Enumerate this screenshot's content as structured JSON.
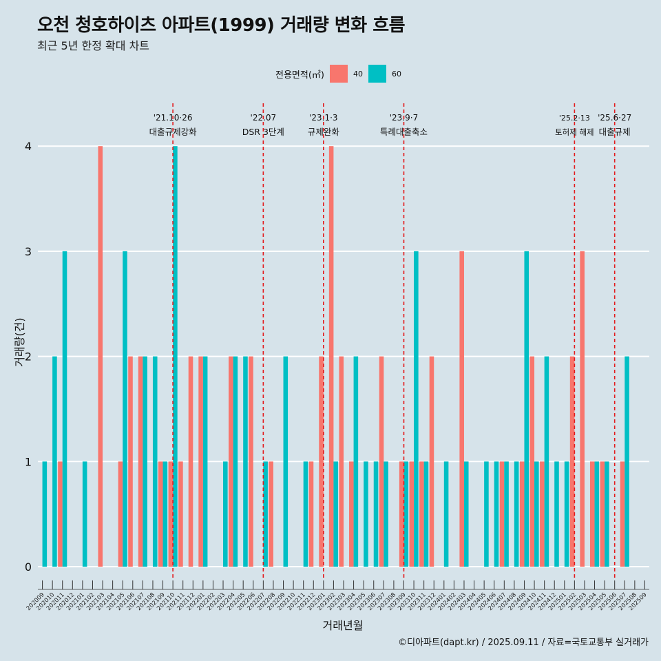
{
  "title": "오천 청호하이츠 아파트(1999) 거래량 변화 흐름",
  "subtitle": "최근 5년 한정 확대 차트",
  "caption": "©디아파트(dapt.kr) / 2025.09.11 / 자료=국토교통부 실거래가",
  "legend": {
    "title": "전용면적(㎡)",
    "items": [
      {
        "label": "40",
        "color": "#f8766d"
      },
      {
        "label": "60",
        "color": "#00bfc4"
      }
    ]
  },
  "chart_data": {
    "type": "bar",
    "xlabel": "거래년월",
    "ylabel": "거래량(건)",
    "ylim": [
      0,
      4
    ],
    "yticks": [
      0,
      1,
      2,
      3,
      4
    ],
    "categories": [
      "202009",
      "202010",
      "202011",
      "202012",
      "202101",
      "202102",
      "202103",
      "202104",
      "202105",
      "202106",
      "202107",
      "202108",
      "202109",
      "202110",
      "202111",
      "202112",
      "202201",
      "202202",
      "202203",
      "202204",
      "202205",
      "202206",
      "202207",
      "202208",
      "202209",
      "202210",
      "202211",
      "202212",
      "202301",
      "202302",
      "202303",
      "202304",
      "202305",
      "202306",
      "202307",
      "202308",
      "202309",
      "202310",
      "202311",
      "202312",
      "202401",
      "202402",
      "202403",
      "202404",
      "202405",
      "202406",
      "202407",
      "202408",
      "202409",
      "202410",
      "202411",
      "202412",
      "202501",
      "202502",
      "202503",
      "202504",
      "202505",
      "202506",
      "202507",
      "202508",
      "202509"
    ],
    "series": [
      {
        "name": "40",
        "color": "#f8766d",
        "values": [
          0,
          0,
          1,
          0,
          0,
          0,
          4,
          0,
          1,
          2,
          2,
          0,
          1,
          1,
          1,
          2,
          2,
          0,
          0,
          2,
          0,
          2,
          0,
          1,
          0,
          0,
          0,
          1,
          2,
          4,
          2,
          1,
          0,
          0,
          2,
          0,
          1,
          1,
          1,
          2,
          0,
          0,
          3,
          0,
          0,
          0,
          1,
          0,
          1,
          2,
          1,
          0,
          0,
          2,
          3,
          1,
          1,
          0,
          1,
          0,
          0
        ]
      },
      {
        "name": "60",
        "color": "#00bfc4",
        "values": [
          1,
          2,
          3,
          0,
          1,
          0,
          0,
          0,
          3,
          0,
          2,
          2,
          1,
          4,
          0,
          0,
          2,
          0,
          1,
          2,
          2,
          0,
          1,
          0,
          2,
          0,
          1,
          0,
          0,
          1,
          0,
          2,
          1,
          1,
          1,
          0,
          1,
          3,
          1,
          0,
          1,
          0,
          1,
          0,
          1,
          1,
          1,
          1,
          3,
          1,
          2,
          1,
          1,
          0,
          0,
          1,
          1,
          0,
          2,
          0,
          0
        ]
      }
    ],
    "annotations": [
      {
        "category": "202110",
        "date": "'21.10·26",
        "label": "대출규제강화"
      },
      {
        "category": "202207",
        "date": "'22.07",
        "label": "DSR 3단계"
      },
      {
        "category": "202301",
        "date": "'23.1·3",
        "label": "규제완화"
      },
      {
        "category": "202309",
        "date": "'23.9·7",
        "label": "특례대출축소"
      },
      {
        "category": "202502",
        "date": "'25.2·13",
        "label": "토허제 해제"
      },
      {
        "category": "202506",
        "date": "'25.6·27",
        "label": "대출규제"
      }
    ],
    "grid": "horizontal",
    "legend_position": "top"
  }
}
